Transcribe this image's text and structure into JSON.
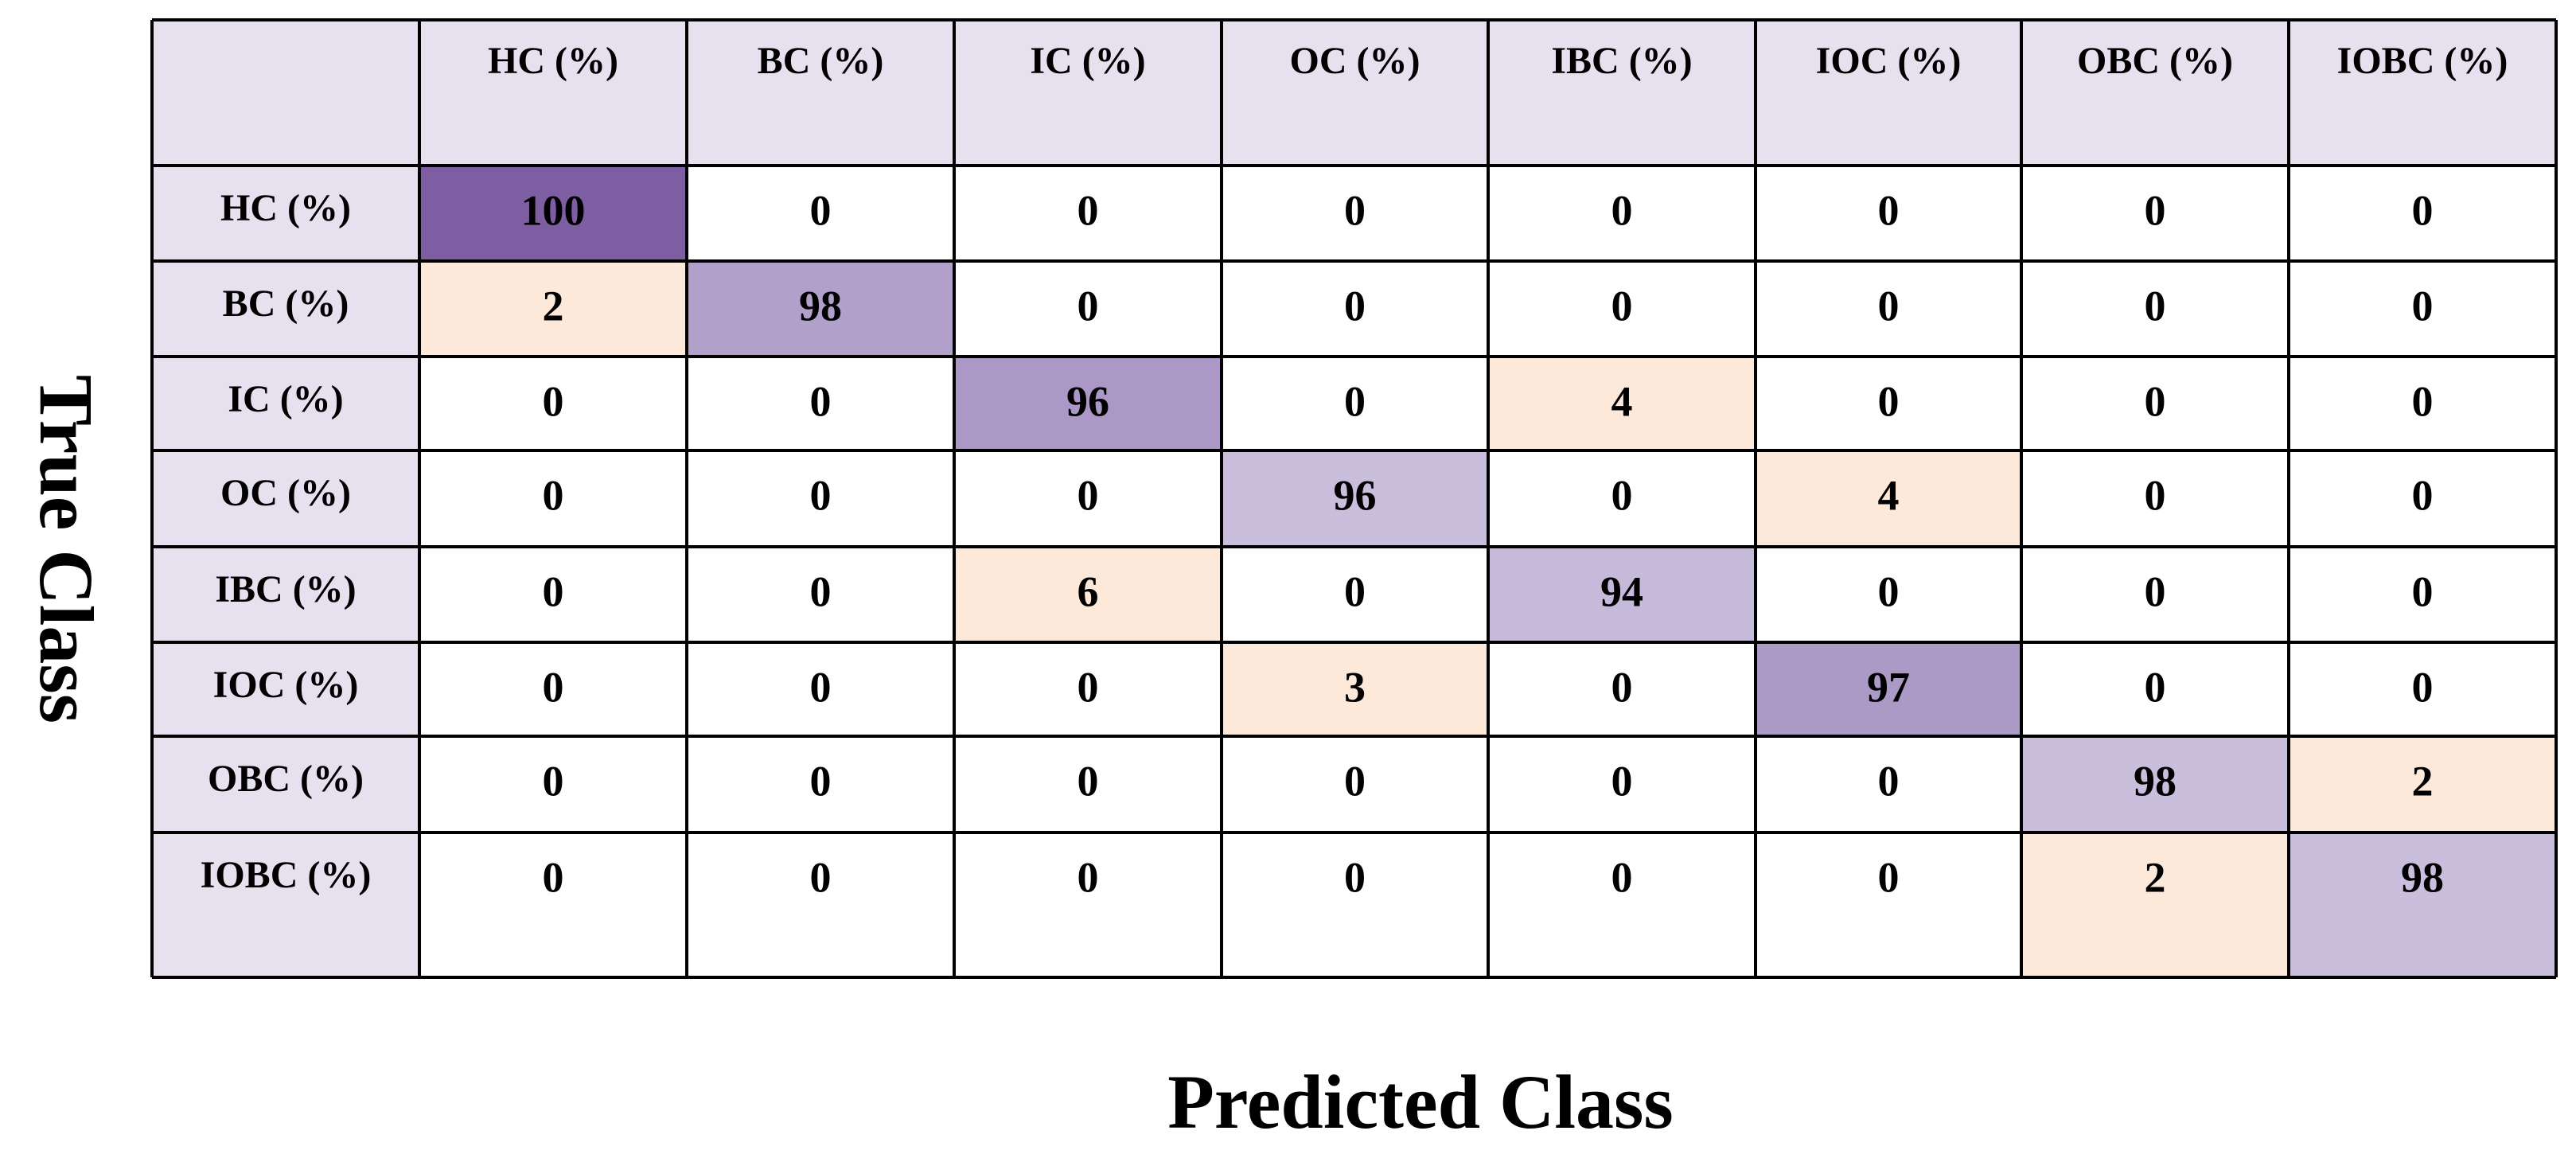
{
  "axis_labels": {
    "y": "True Class",
    "x": "Predicted Class"
  },
  "table": {
    "columns": [
      "HC (%)",
      "BC (%)",
      "IC (%)",
      "OC (%)",
      "IBC (%)",
      "IOC (%)",
      "OBC (%)",
      "IOBC (%)"
    ],
    "rows": [
      {
        "label": "HC (%)",
        "values": [
          100,
          0,
          0,
          0,
          0,
          0,
          0,
          0
        ]
      },
      {
        "label": "BC (%)",
        "values": [
          2,
          98,
          0,
          0,
          0,
          0,
          0,
          0
        ]
      },
      {
        "label": "IC (%)",
        "values": [
          0,
          0,
          96,
          0,
          4,
          0,
          0,
          0
        ]
      },
      {
        "label": "OC (%)",
        "values": [
          0,
          0,
          0,
          96,
          0,
          4,
          0,
          0
        ]
      },
      {
        "label": "IBC (%)",
        "values": [
          0,
          0,
          6,
          0,
          94,
          0,
          0,
          0
        ]
      },
      {
        "label": "IOC (%)",
        "values": [
          0,
          0,
          0,
          3,
          0,
          97,
          0,
          0
        ]
      },
      {
        "label": "OBC (%)",
        "values": [
          0,
          0,
          0,
          0,
          0,
          0,
          98,
          2
        ]
      },
      {
        "label": "IOBC (%)",
        "values": [
          0,
          0,
          0,
          0,
          0,
          0,
          2,
          98
        ]
      }
    ],
    "header_color": "#e6e0ef",
    "cell_colors": [
      [
        "#7e5ea2",
        "#ffffff",
        "#ffffff",
        "#ffffff",
        "#ffffff",
        "#ffffff",
        "#ffffff",
        "#ffffff"
      ],
      [
        "#fde9da",
        "#b1a0c9",
        "#ffffff",
        "#ffffff",
        "#ffffff",
        "#ffffff",
        "#ffffff",
        "#ffffff"
      ],
      [
        "#ffffff",
        "#ffffff",
        "#ab98c6",
        "#ffffff",
        "#fde9da",
        "#ffffff",
        "#ffffff",
        "#ffffff"
      ],
      [
        "#ffffff",
        "#ffffff",
        "#ffffff",
        "#c9bedb",
        "#ffffff",
        "#fde9da",
        "#ffffff",
        "#ffffff"
      ],
      [
        "#ffffff",
        "#ffffff",
        "#fde9da",
        "#ffffff",
        "#c6bada",
        "#ffffff",
        "#ffffff",
        "#ffffff"
      ],
      [
        "#ffffff",
        "#ffffff",
        "#ffffff",
        "#fde9da",
        "#ffffff",
        "#ac9ac6",
        "#ffffff",
        "#ffffff"
      ],
      [
        "#ffffff",
        "#ffffff",
        "#ffffff",
        "#ffffff",
        "#ffffff",
        "#ffffff",
        "#c9bedb",
        "#fde9da"
      ],
      [
        "#ffffff",
        "#ffffff",
        "#ffffff",
        "#ffffff",
        "#ffffff",
        "#ffffff",
        "#fde9da",
        "#c9bedb"
      ]
    ]
  }
}
